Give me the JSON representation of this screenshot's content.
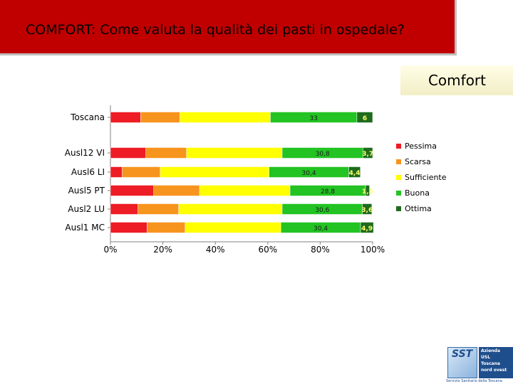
{
  "header": {
    "title": "COMFORT: Come valuta la qualità dei pasti in ospedale?"
  },
  "section": {
    "label": "Comfort"
  },
  "logo": {
    "sst_text": "SST",
    "org_text": "Azienda\nUSL\nToscana\nnord ovest",
    "footer_text": "Servizio Sanitario della Toscana"
  },
  "chart_data": {
    "type": "bar",
    "orientation": "horizontal",
    "stacked": "percent",
    "categories": [
      "Toscana",
      "Ausl12 VI",
      "Ausl6 LI",
      "Ausl5 PT",
      "Ausl2 LU",
      "Ausl1 MC"
    ],
    "series": [
      {
        "name": "Pessima",
        "color": "#ee1c25",
        "values": [
          11.5,
          13.5,
          4.5,
          16.5,
          10.5,
          14
        ]
      },
      {
        "name": "Scarsa",
        "color": "#f7941d",
        "values": [
          15,
          15.5,
          14.5,
          17.5,
          15.5,
          14.5
        ]
      },
      {
        "name": "Sufficiente",
        "color": "#ffff00",
        "values": [
          34.5,
          36.5,
          41.5,
          34.5,
          39.5,
          36.5
        ]
      },
      {
        "name": "Buona",
        "color": "#22c322",
        "values": [
          33,
          30.8,
          30.4,
          28.8,
          30.6,
          30.4
        ]
      },
      {
        "name": "Ottima",
        "color": "#1e6b1e",
        "values": [
          6,
          3.7,
          4.4,
          1.5,
          3.6,
          4.9
        ]
      }
    ],
    "data_labels": {
      "Buona": [
        "33",
        "30,8",
        "30,4",
        "28,8",
        "30,6",
        "30,4"
      ],
      "Ottima": [
        "6",
        "3,7",
        "4,4",
        "1,5",
        "3,6",
        "4,9"
      ]
    },
    "x_ticks": [
      "0%",
      "20%",
      "40%",
      "60%",
      "80%",
      "100%"
    ],
    "xlim": [
      0,
      100
    ],
    "grid": false,
    "legend": "right"
  }
}
